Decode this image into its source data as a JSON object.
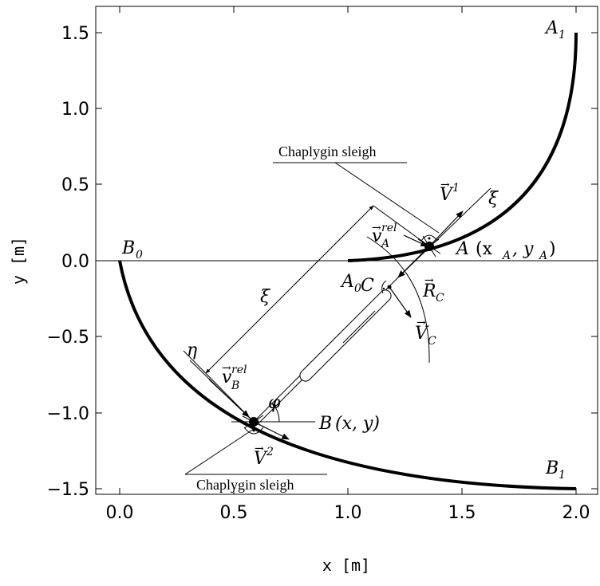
{
  "axes": {
    "x_label": "x [m]",
    "y_label": "y [m]",
    "x_ticks": [
      "0.0",
      "0.5",
      "1.0",
      "1.5",
      "2.0"
    ],
    "y_ticks": [
      "1.5",
      "1.0",
      "0.5",
      "0.0",
      "−0.5",
      "−1.0",
      "−1.5"
    ]
  },
  "labels": {
    "A1": "A",
    "A1_sub": "1",
    "B0": "B",
    "B0_sub": "0",
    "A0": "A",
    "A0_sub": "0",
    "B1": "B",
    "B1_sub": "1",
    "A_point": "A",
    "A_coords": "(x",
    "A_coords_sub1": "A",
    "A_coords_mid": ", y",
    "A_coords_sub2": "A",
    "A_coords_end": ")",
    "B_point": "B",
    "B_coords": "(x, y)",
    "C": "C",
    "xi_axis": "ξ",
    "xi_dim": "ξ",
    "eta": "η",
    "phi": "φ",
    "V1": "V",
    "V1_sup": "1",
    "V2": "V",
    "V2_sup": "2",
    "VC": "V",
    "VC_sub": "C",
    "RC": "R",
    "RC_sub": "C",
    "vA_rel": "v",
    "vA_rel_sub": "A",
    "vA_rel_sup": "rel",
    "vB_rel": "v",
    "vB_rel_sub": "B",
    "vB_rel_sup": "rel",
    "arrow_accent": "→"
  },
  "callouts": {
    "top": "Chaplygin sleigh",
    "bottom": "Chaplygin sleigh"
  }
}
